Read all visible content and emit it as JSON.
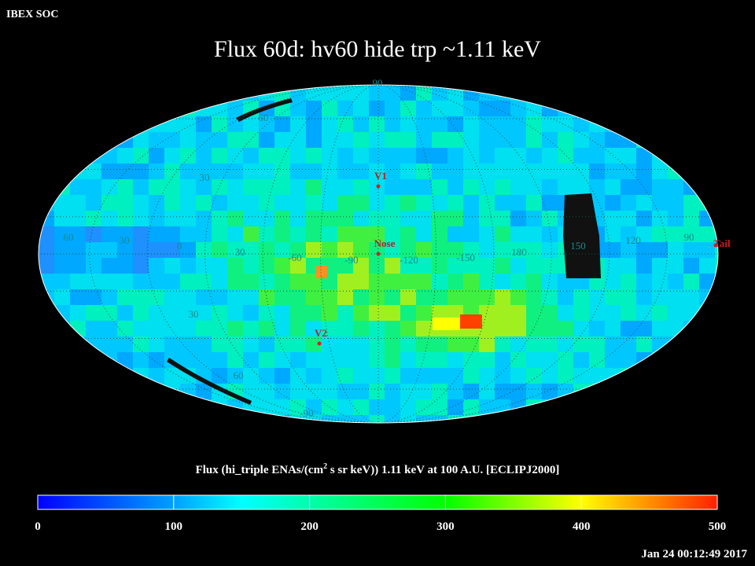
{
  "header": {
    "source": "IBEX SOC",
    "title": "Flux   60d: hv60 hide trp ~1.11 keV",
    "timestamp": "Jan 24 00:12:49 2017"
  },
  "map": {
    "grid_labels": [
      "90",
      "60",
      "30",
      "60",
      "30",
      "0",
      "30",
      "-60",
      "-90",
      "-120",
      "-150",
      "180",
      "150",
      "120",
      "90",
      "30",
      "60",
      "-90"
    ],
    "markers": [
      "V1",
      "Nose",
      "V2",
      "Tail"
    ]
  },
  "colorbar": {
    "label_parts": [
      "Flux (hi_triple ENAs/(cm",
      "2",
      " s sr keV))  1.11 keV at 100 A.U. [ECLIPJ2000]"
    ],
    "range": [
      0,
      500
    ],
    "ticks": [
      0,
      100,
      200,
      300,
      400,
      500
    ]
  }
}
